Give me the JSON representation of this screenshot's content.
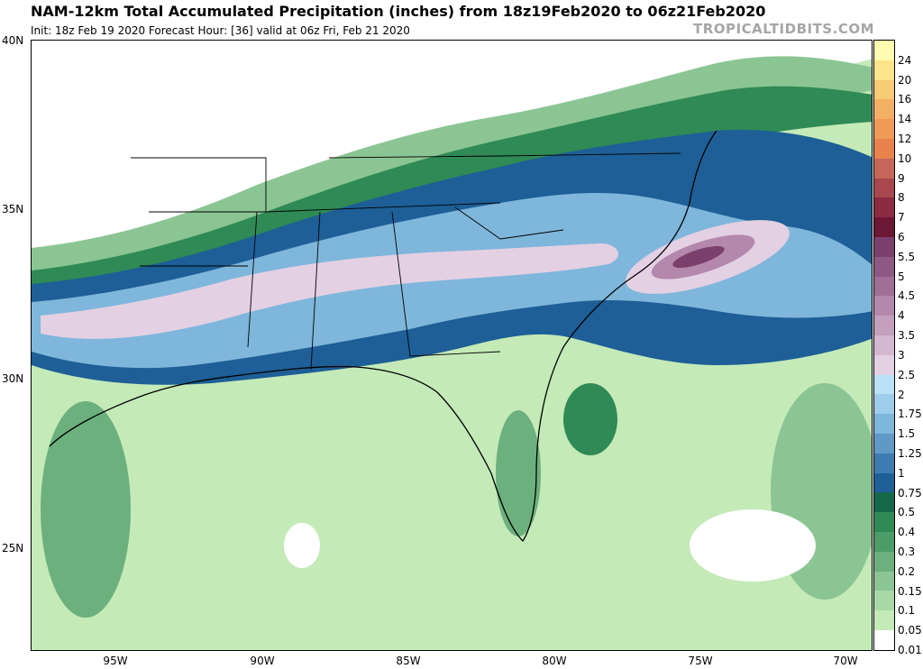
{
  "title": "NAM-12km Total Accumulated Precipitation (inches) from 18z19Feb2020 to 06z21Feb2020",
  "subtitle": "Init: 18z Feb 19 2020   Forecast Hour: [36]   valid at 06z Fri, Feb 21 2020",
  "brand": "TROPICALTIDBITS.COM",
  "lat_labels": [
    "40N",
    "35N",
    "30N",
    "25N"
  ],
  "lon_labels": [
    "95W",
    "90W",
    "85W",
    "80W",
    "75W",
    "70W"
  ],
  "colorbar": {
    "levels": [
      "24",
      "20",
      "16",
      "14",
      "12",
      "10",
      "9",
      "8",
      "7",
      "6",
      "5.5",
      "5",
      "4.5",
      "4",
      "3.5",
      "3",
      "2.5",
      "2",
      "1.75",
      "1.5",
      "1.25",
      "1",
      "0.75",
      "0.5",
      "0.4",
      "0.3",
      "0.2",
      "0.15",
      "0.1",
      "0.05",
      "0.01"
    ],
    "colors": [
      "#fffbb0",
      "#fbe48a",
      "#f7ca74",
      "#f3b064",
      "#ef9a57",
      "#e9824d",
      "#c46659",
      "#a8474d",
      "#8a2a43",
      "#6c1736",
      "#7a3f6d",
      "#8d5884",
      "#a06f98",
      "#b487ac",
      "#c49fbe",
      "#d3b8d0",
      "#e3d0e3",
      "#b9e1f5",
      "#9dcdea",
      "#7fb6db",
      "#6098c6",
      "#3d7bb0",
      "#1d5f96",
      "#14694a",
      "#2f8a55",
      "#4c9c68",
      "#6cb07e",
      "#8bc593",
      "#a8d8a6",
      "#c4eab8",
      "#ffffff"
    ]
  }
}
